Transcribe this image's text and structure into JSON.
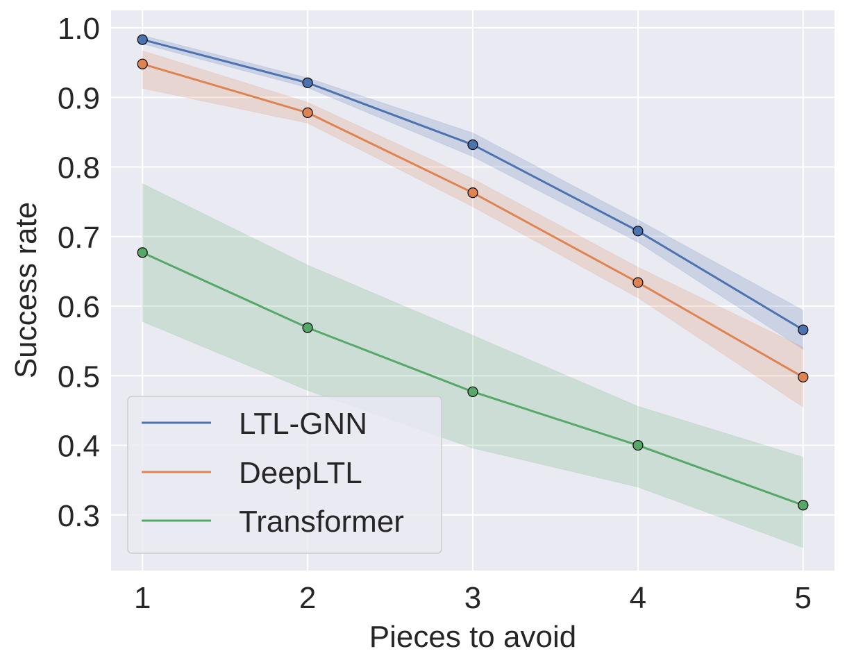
{
  "chart_data": {
    "type": "line",
    "title": "",
    "xlabel": "Pieces to avoid",
    "ylabel": "Success rate",
    "x": [
      1,
      2,
      3,
      4,
      5
    ],
    "xticks": [
      "1",
      "2",
      "3",
      "4",
      "5"
    ],
    "yticks": [
      "0.3",
      "0.4",
      "0.5",
      "0.6",
      "0.7",
      "0.8",
      "0.9",
      "1.0"
    ],
    "xlim": [
      0.81,
      5.19
    ],
    "ylim": [
      0.22,
      1.025
    ],
    "grid": true,
    "legend_position": "lower-left",
    "series": [
      {
        "name": "LTL-GNN",
        "color": "#4c72b0",
        "values": [
          0.983,
          0.921,
          0.832,
          0.708,
          0.566
        ],
        "lower": [
          0.977,
          0.914,
          0.815,
          0.692,
          0.538
        ],
        "upper": [
          0.989,
          0.928,
          0.849,
          0.724,
          0.594
        ]
      },
      {
        "name": "DeepLTL",
        "color": "#dd8452",
        "values": [
          0.948,
          0.878,
          0.763,
          0.634,
          0.498
        ],
        "lower": [
          0.913,
          0.863,
          0.743,
          0.612,
          0.455
        ],
        "upper": [
          0.967,
          0.893,
          0.783,
          0.656,
          0.541
        ]
      },
      {
        "name": "Transformer",
        "color": "#55a868",
        "values": [
          0.677,
          0.569,
          0.477,
          0.4,
          0.314
        ],
        "lower": [
          0.578,
          0.479,
          0.396,
          0.34,
          0.253
        ],
        "upper": [
          0.776,
          0.659,
          0.558,
          0.456,
          0.383
        ]
      }
    ]
  }
}
